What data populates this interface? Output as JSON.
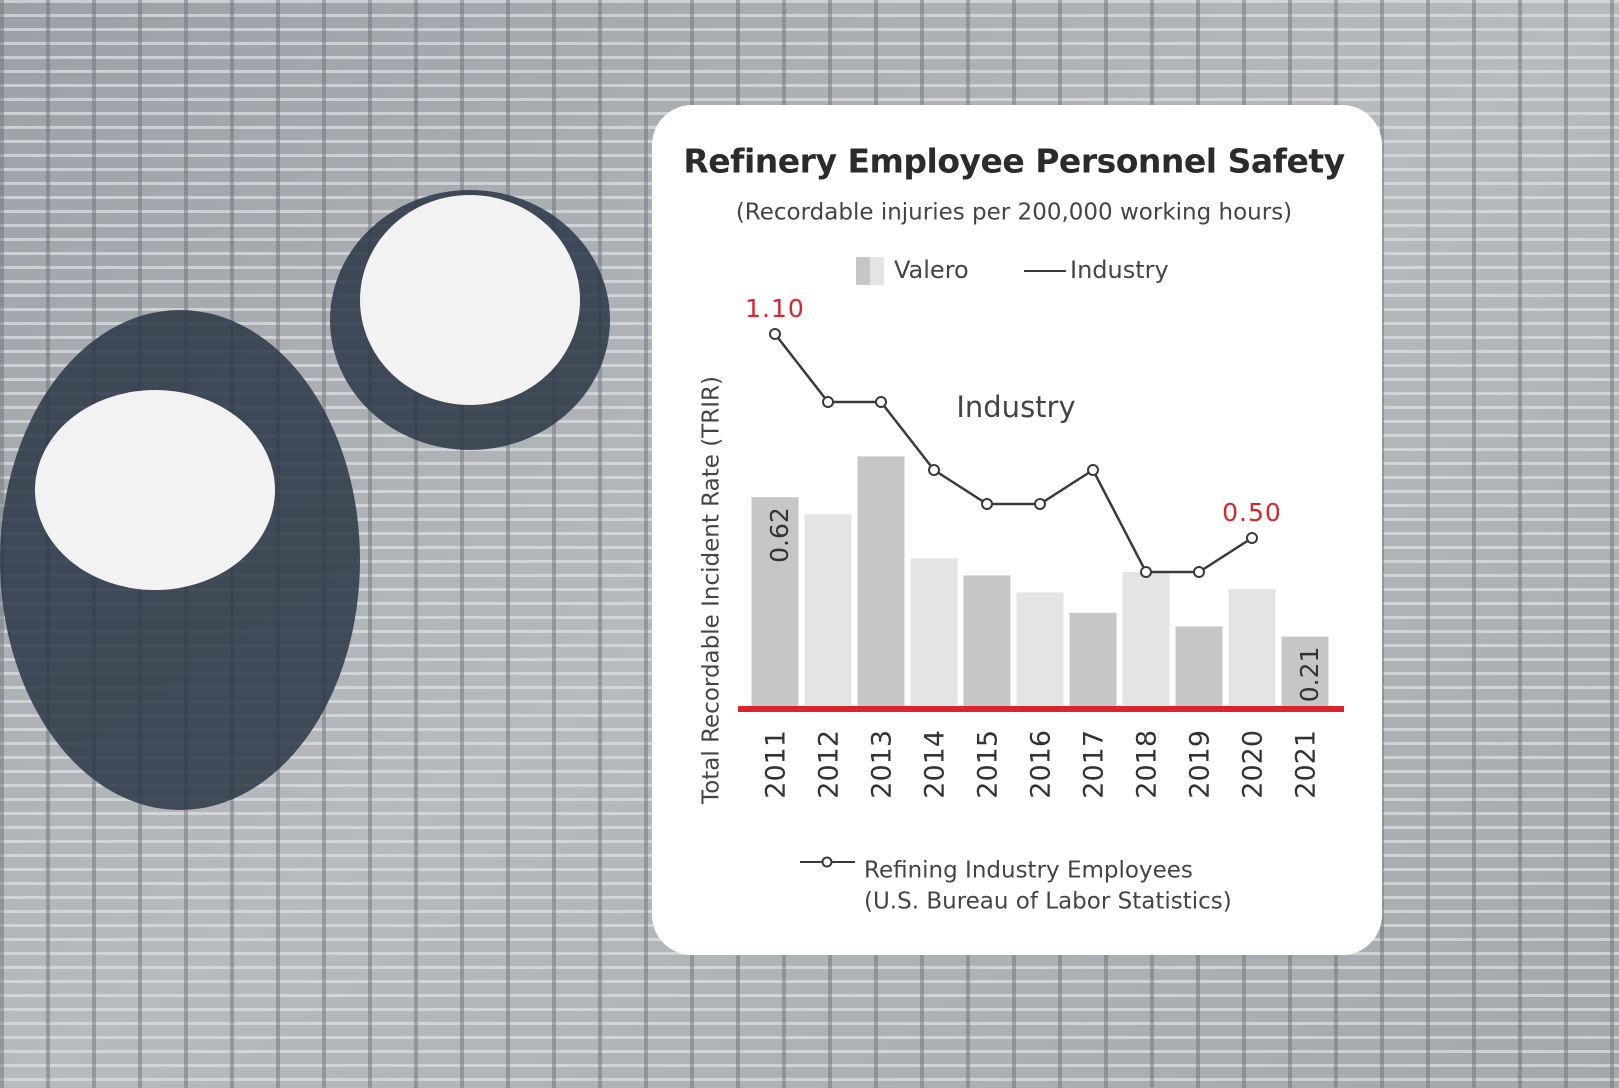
{
  "chart_data": {
    "type": "bar-line",
    "title": "Refinery Employee Personnel Safety",
    "subtitle": "(Recordable injuries per 200,000 working hours)",
    "y_label": "Total Recordable Incident Rate (TRIR)",
    "annotation": "Industry",
    "source_note": [
      "Refining Industry Employees",
      "(U.S. Bureau of Labor Statistics)"
    ],
    "categories": [
      "2011",
      "2012",
      "2013",
      "2014",
      "2015",
      "2016",
      "2017",
      "2018",
      "2019",
      "2020",
      "2021"
    ],
    "ylim": [
      0,
      1.2
    ],
    "series": [
      {
        "name": "Valero",
        "type": "bar",
        "colors": [
          "#c6c6c8",
          "#e4e4e6",
          "#c6c6c8",
          "#e4e4e6",
          "#c6c6c8",
          "#e4e4e6",
          "#c6c6c8",
          "#e4e4e6",
          "#c6c6c8",
          "#e4e4e6",
          "#c6c6c8"
        ],
        "values": [
          0.62,
          0.57,
          0.74,
          0.44,
          0.39,
          0.34,
          0.28,
          0.4,
          0.24,
          0.35,
          0.21
        ],
        "value_labels": [
          "0.62",
          null,
          null,
          null,
          null,
          null,
          null,
          null,
          null,
          null,
          "0.21"
        ]
      },
      {
        "name": "Industry",
        "type": "line",
        "color": "#3a3a3a",
        "label_color": "#d7262e",
        "values": [
          1.1,
          0.9,
          0.9,
          0.7,
          0.6,
          0.6,
          0.7,
          0.4,
          0.4,
          0.5,
          null
        ],
        "value_labels": [
          "1.10",
          null,
          null,
          null,
          null,
          null,
          null,
          null,
          null,
          "0.50",
          null
        ]
      }
    ],
    "baseline_color": "#d7262e"
  }
}
